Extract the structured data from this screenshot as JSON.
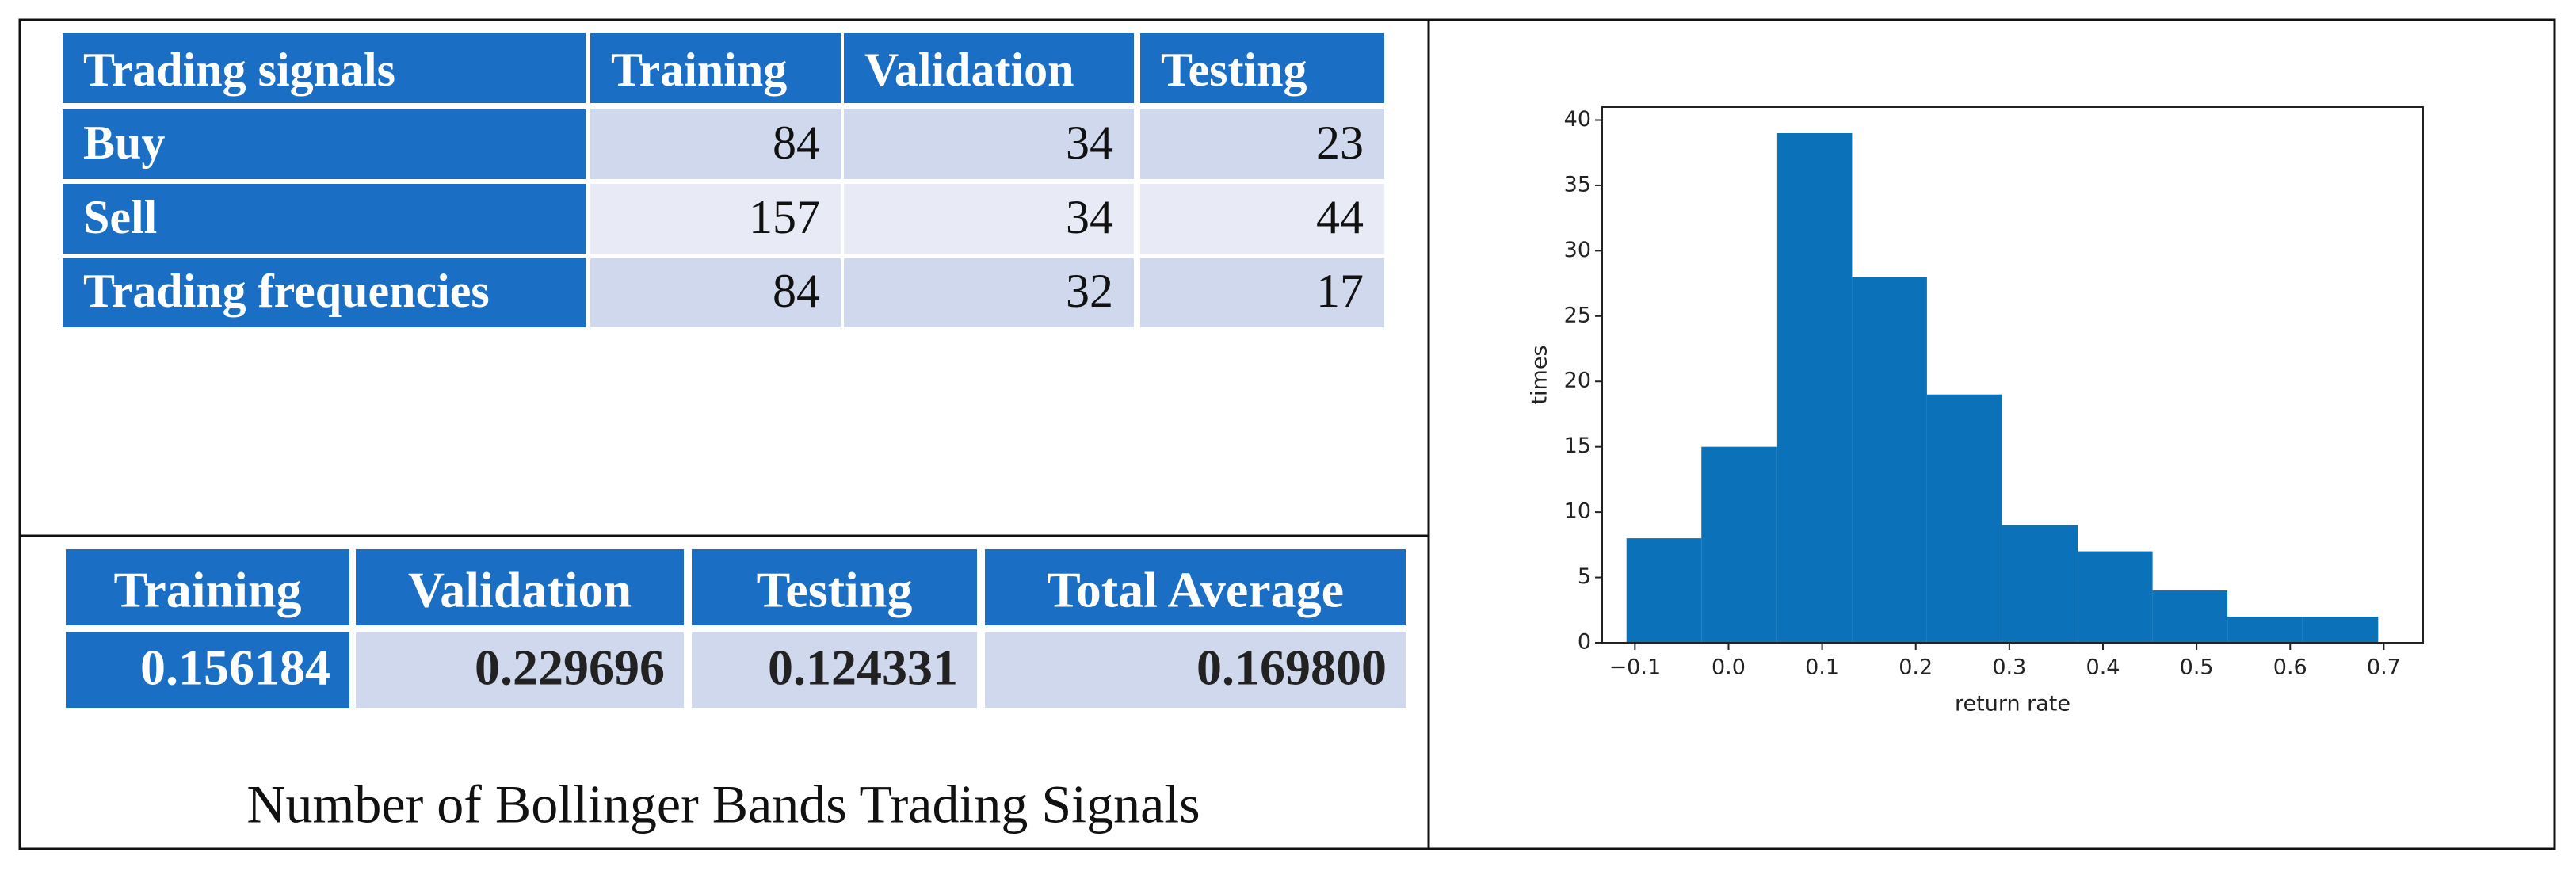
{
  "table1": {
    "header": [
      "Trading signals",
      "Training",
      "Validation",
      "Testing"
    ],
    "rows": [
      [
        "Buy",
        "84",
        "34",
        "23"
      ],
      [
        "Sell",
        "157",
        "34",
        "44"
      ],
      [
        "Trading frequencies",
        "84",
        "32",
        "17"
      ]
    ]
  },
  "table2": {
    "header": [
      "Training",
      "Validation",
      "Testing",
      "Total Average"
    ],
    "rows": [
      [
        "0.156184",
        "0.229696",
        "0.124331",
        "0.169800"
      ]
    ]
  },
  "caption": "Number of Bollinger Bands Trading Signals",
  "chart_data": {
    "type": "histogram",
    "xlabel": "return rate",
    "ylabel": "times",
    "color": "#0b72b9",
    "bins": [
      -0.109,
      -0.029,
      0.052,
      0.132,
      0.212,
      0.292,
      0.373,
      0.453,
      0.533,
      0.613,
      0.694
    ],
    "counts": [
      8,
      15,
      39,
      28,
      19,
      9,
      7,
      4,
      2,
      2
    ],
    "xlim": [
      -0.135,
      0.742
    ],
    "ylim": [
      0,
      41
    ],
    "xticks": [
      {
        "value": -0.1,
        "label": "−0.1"
      },
      {
        "value": 0,
        "label": "0.0"
      },
      0.1,
      0.2,
      0.3,
      0.4,
      0.5,
      0.6,
      0.7
    ],
    "yticks": [
      0,
      5,
      10,
      15,
      20,
      25,
      30,
      35,
      40
    ]
  }
}
